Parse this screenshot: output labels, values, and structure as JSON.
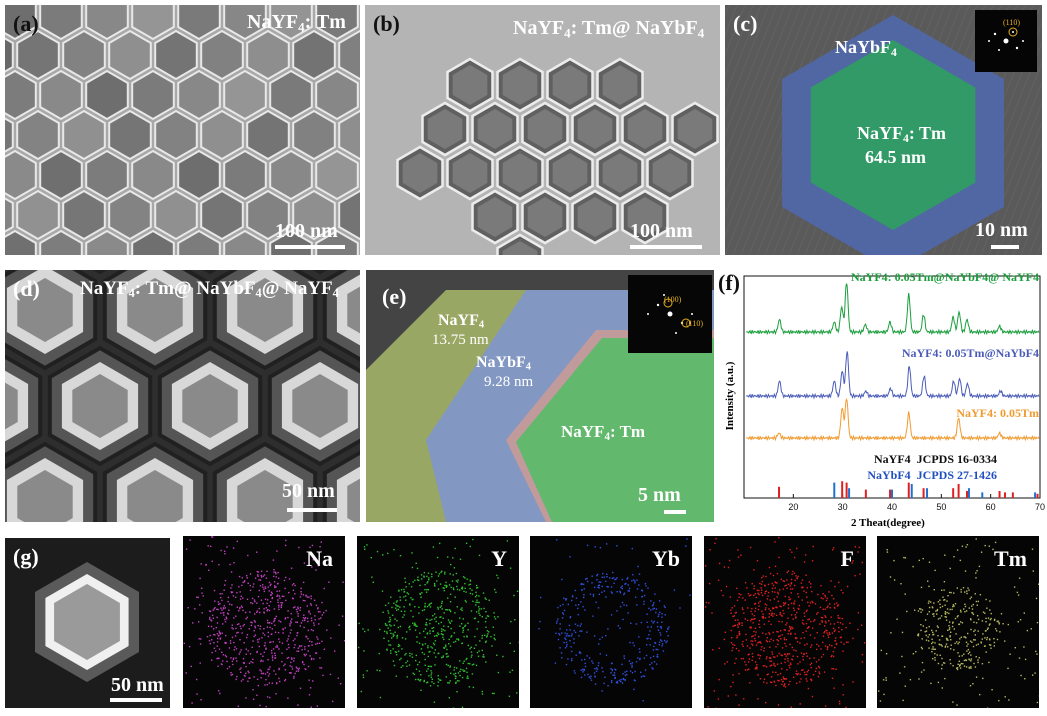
{
  "panels": {
    "a": {
      "letter": "(a)",
      "title_main": "NaYF",
      "title_sub": "4",
      "title_rest": ": Tm",
      "scale": "100 nm"
    },
    "b": {
      "letter": "(b)",
      "title_main": "NaYF",
      "title_sub": "4",
      "title_mid": ": Tm@ NaYbF",
      "title_sub2": "4",
      "scale": "100 nm"
    },
    "c": {
      "letter": "(c)",
      "shell_main": "NaYbF",
      "shell_sub": "4",
      "core_main": "NaYF",
      "core_sub": "4",
      "core_rest": ": Tm",
      "core_size": "64.5 nm",
      "fft_label": "(110)",
      "scale": "10 nm"
    },
    "d": {
      "letter": "(d)",
      "title_a": "NaYF",
      "title_s1": "4",
      "title_b": ": Tm@ NaYbF",
      "title_s2": "4",
      "title_c": "@ NaYF",
      "title_s3": "4",
      "scale": "50 nm"
    },
    "e": {
      "letter": "(e)",
      "outer_main": "NaYF",
      "outer_sub": "4",
      "outer_size": "13.75 nm",
      "mid_main": "NaYbF",
      "mid_sub": "4",
      "mid_size": "9.28 nm",
      "core_main": "NaYF",
      "core_sub": "4",
      "core_rest": ": Tm",
      "fft_label1": "(100)",
      "fft_label2": "(110)",
      "scale": "5 nm"
    },
    "g": {
      "letter": "(g)",
      "scale": "50 nm"
    }
  },
  "eds_maps": [
    {
      "element": "Na",
      "color": "#c040c0"
    },
    {
      "element": "Y",
      "color": "#30c030"
    },
    {
      "element": "Yb",
      "color": "#3050e0"
    },
    {
      "element": "F",
      "color": "#e02020"
    },
    {
      "element": "Tm",
      "color": "#b8b860"
    }
  ],
  "xrd": {
    "letter": "(f)",
    "ylabel": "Intensity (a.u.)",
    "xlabel": "2 Theat(degree)",
    "series": [
      {
        "name": "NaYF4: 0.05Tm@NaYbF4@ NaYF4",
        "color": "#1a9e3c"
      },
      {
        "name": "NaYF4: 0.05Tm@NaYbF4",
        "color": "#4a5cb8"
      },
      {
        "name": "NaYF4: 0.05Tm",
        "color": "#f09a30"
      }
    ],
    "ref1": {
      "name": "NaYF4",
      "code": "JCPDS 16-0334",
      "color": "#e02020"
    },
    "ref2": {
      "name": "NaYbF4",
      "code": "JCPDS 27-1426",
      "color": "#2070d0"
    }
  },
  "chart_data": {
    "type": "line",
    "xlabel": "2 Theat(degree)",
    "ylabel": "Intensity (a.u.)",
    "xlim": [
      10,
      70
    ],
    "xticks": [
      20,
      30,
      40,
      50,
      60,
      70
    ],
    "series": [
      {
        "name": "NaYF4: 0.05Tm@NaYbF4@ NaYF4",
        "peaks": [
          [
            17.2,
            0.25
          ],
          [
            28.3,
            0.2
          ],
          [
            29.8,
            0.5
          ],
          [
            30.8,
            1.0
          ],
          [
            34.6,
            0.15
          ],
          [
            39.6,
            0.2
          ],
          [
            43.4,
            0.75
          ],
          [
            46.4,
            0.35
          ],
          [
            52.4,
            0.3
          ],
          [
            53.6,
            0.4
          ],
          [
            55.2,
            0.25
          ],
          [
            61.8,
            0.12
          ]
        ]
      },
      {
        "name": "NaYF4: 0.05Tm@NaYbF4",
        "peaks": [
          [
            17.2,
            0.3
          ],
          [
            28.3,
            0.3
          ],
          [
            29.9,
            0.5
          ],
          [
            30.9,
            0.9
          ],
          [
            34.7,
            0.1
          ],
          [
            39.7,
            0.15
          ],
          [
            43.5,
            0.6
          ],
          [
            46.5,
            0.4
          ],
          [
            52.5,
            0.3
          ],
          [
            53.7,
            0.35
          ],
          [
            55.3,
            0.25
          ],
          [
            62.0,
            0.1
          ]
        ]
      },
      {
        "name": "NaYF4: 0.05Tm",
        "peaks": [
          [
            17.1,
            0.1
          ],
          [
            29.9,
            0.6
          ],
          [
            30.8,
            0.8
          ],
          [
            43.4,
            0.5
          ],
          [
            53.5,
            0.4
          ],
          [
            61.8,
            0.1
          ]
        ]
      }
    ],
    "references": [
      {
        "name": "NaYF4 JCPDS 16-0334",
        "lines": [
          [
            17.1,
            0.4
          ],
          [
            29.9,
            0.6
          ],
          [
            30.8,
            0.55
          ],
          [
            34.7,
            0.3
          ],
          [
            39.6,
            0.3
          ],
          [
            43.4,
            0.55
          ],
          [
            46.4,
            0.35
          ],
          [
            52.4,
            0.35
          ],
          [
            53.5,
            0.5
          ],
          [
            55.2,
            0.25
          ],
          [
            61.8,
            0.25
          ],
          [
            62.9,
            0.2
          ],
          [
            64.5,
            0.2
          ],
          [
            69.5,
            0.15
          ]
        ]
      },
      {
        "name": "NaYbF4 JCPDS 27-1426",
        "lines": [
          [
            28.3,
            0.55
          ],
          [
            31.3,
            0.35
          ],
          [
            40.0,
            0.3
          ],
          [
            44.0,
            0.5
          ],
          [
            47.1,
            0.35
          ],
          [
            55.6,
            0.35
          ],
          [
            58.3,
            0.2
          ],
          [
            69.0,
            0.2
          ]
        ]
      }
    ]
  }
}
